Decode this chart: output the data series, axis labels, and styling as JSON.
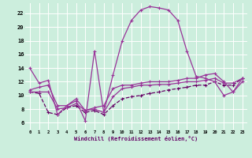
{
  "xlabel": "Windchill (Refroidissement éolien,°C)",
  "bg_color": "#cceedd",
  "grid_color": "#ffffff",
  "line_color1": "#993399",
  "line_color2": "#993399",
  "line_color3": "#660066",
  "line_color4": "#993399",
  "x_ticks": [
    0,
    1,
    2,
    3,
    4,
    5,
    6,
    7,
    8,
    9,
    10,
    11,
    12,
    13,
    14,
    15,
    16,
    17,
    18,
    19,
    20,
    21,
    22,
    23
  ],
  "y_ticks": [
    6,
    8,
    10,
    12,
    14,
    16,
    18,
    20,
    22
  ],
  "ylim": [
    5.0,
    23.5
  ],
  "xlim": [
    -0.5,
    23.5
  ],
  "line1_x": [
    0,
    1,
    2,
    3,
    4,
    5,
    6,
    7,
    8,
    9,
    10,
    11,
    12,
    13,
    14,
    15,
    16,
    17,
    18,
    19,
    20,
    21,
    22,
    23
  ],
  "line1_y": [
    14.0,
    11.8,
    12.2,
    7.2,
    8.5,
    9.2,
    6.3,
    16.5,
    7.5,
    13.0,
    18.0,
    21.0,
    22.5,
    23.0,
    22.8,
    22.5,
    21.0,
    16.5,
    12.8,
    12.5,
    12.0,
    10.0,
    10.5,
    12.0
  ],
  "line2_x": [
    0,
    1,
    2,
    3,
    4,
    5,
    6,
    7,
    8,
    9,
    10,
    11,
    12,
    13,
    14,
    15,
    16,
    17,
    18,
    19,
    20,
    21,
    22,
    23
  ],
  "line2_y": [
    10.5,
    10.5,
    10.5,
    8.0,
    8.2,
    8.8,
    7.8,
    8.0,
    7.5,
    9.8,
    11.0,
    11.2,
    11.5,
    11.5,
    11.6,
    11.6,
    11.8,
    12.0,
    12.0,
    12.2,
    12.5,
    11.8,
    11.8,
    12.5
  ],
  "line3_x": [
    0,
    1,
    2,
    3,
    4,
    5,
    6,
    7,
    8,
    9,
    10,
    11,
    12,
    13,
    14,
    15,
    16,
    17,
    18,
    19,
    20,
    21,
    22,
    23
  ],
  "line3_y": [
    10.5,
    10.3,
    7.5,
    7.2,
    8.2,
    8.5,
    7.5,
    7.8,
    7.2,
    8.5,
    9.5,
    9.8,
    10.0,
    10.3,
    10.5,
    10.8,
    11.0,
    11.2,
    11.5,
    11.5,
    12.0,
    11.5,
    11.5,
    12.5
  ],
  "line4_x": [
    0,
    1,
    2,
    3,
    4,
    5,
    6,
    7,
    8,
    9,
    10,
    11,
    12,
    13,
    14,
    15,
    16,
    17,
    18,
    19,
    20,
    21,
    22,
    23
  ],
  "line4_y": [
    10.8,
    11.2,
    11.5,
    8.5,
    8.5,
    9.5,
    7.8,
    8.2,
    8.5,
    11.0,
    11.5,
    11.5,
    11.8,
    12.0,
    12.0,
    12.0,
    12.2,
    12.5,
    12.5,
    13.0,
    13.2,
    12.0,
    10.5,
    12.5
  ]
}
